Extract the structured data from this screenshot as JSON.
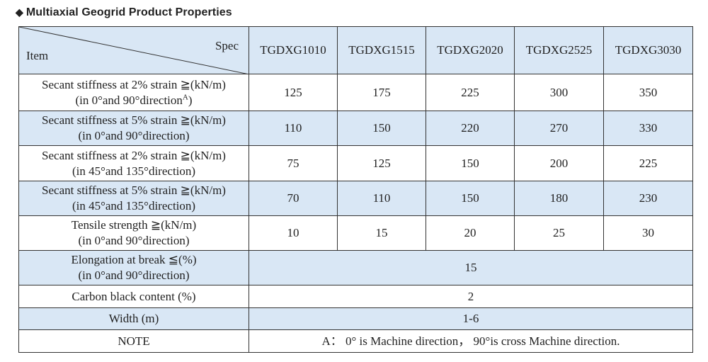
{
  "title": "Multiaxial Geogrid Product Properties",
  "header": {
    "spec_label": "Spec",
    "item_label": "Item",
    "products": [
      "TGDXG1010",
      "TGDXG1515",
      "TGDXG2020",
      "TGDXG2525",
      "TGDXG3030"
    ]
  },
  "rows": [
    {
      "line1": "Secant stiffness at 2% strain ≧(kN/m)",
      "line2": "(in 0°and 90°direction",
      "sup": "A",
      "line2_end": ")",
      "values": [
        "125",
        "175",
        "225",
        "300",
        "350"
      ]
    },
    {
      "line1": "Secant stiffness at 5% strain  ≧(kN/m)",
      "line2": "(in 0°and 90°direction)",
      "values": [
        "110",
        "150",
        "220",
        "270",
        "330"
      ]
    },
    {
      "line1": "Secant stiffness at 2% strain ≧(kN/m)",
      "line2": "(in 45°and 135°direction)",
      "values": [
        "75",
        "125",
        "150",
        "200",
        "225"
      ]
    },
    {
      "line1": "Secant stiffness at 5% strain ≧(kN/m)",
      "line2": "(in 45°and 135°direction)",
      "values": [
        "70",
        "110",
        "150",
        "180",
        "230"
      ]
    },
    {
      "line1": "Tensile strength ≧(kN/m)",
      "line2": "(in 0°and 90°direction)",
      "values": [
        "10",
        "15",
        "20",
        "25",
        "30"
      ]
    }
  ],
  "merged_rows": [
    {
      "line1": "Elongation at break ≦(%)",
      "line2": "(in 0°and 90°direction)",
      "value": "15"
    },
    {
      "line1": "Carbon black content (%)",
      "value": "2"
    },
    {
      "line1": "Width (m)",
      "value": "1-6"
    },
    {
      "line1": "NOTE",
      "value": "A： 0° is Machine direction， 90°is cross Machine direction."
    }
  ]
}
